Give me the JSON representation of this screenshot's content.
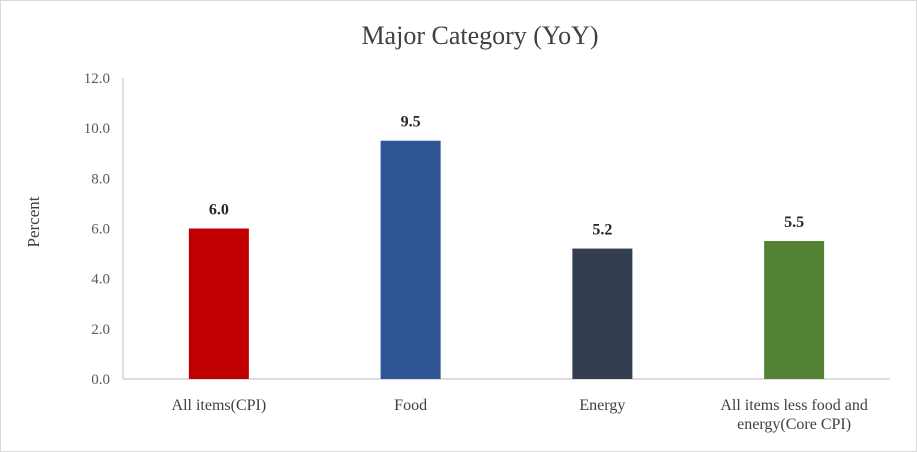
{
  "chart_data": {
    "type": "bar",
    "title": "Major Category (YoY)",
    "xlabel": "",
    "ylabel": "Percent",
    "ylim": [
      0,
      12
    ],
    "yticks": [
      "0.0",
      "2.0",
      "4.0",
      "6.0",
      "8.0",
      "10.0",
      "12.0"
    ],
    "categories": [
      [
        "All items(CPI)"
      ],
      [
        "Food"
      ],
      [
        "Energy"
      ],
      [
        "All items less food and",
        "energy(Core CPI)"
      ]
    ],
    "values": [
      6.0,
      9.5,
      5.2,
      5.5
    ],
    "data_labels": [
      "6.0",
      "9.5",
      "5.2",
      "5.5"
    ],
    "colors": [
      "#c00000",
      "#2f5597",
      "#333f50",
      "#548235"
    ],
    "grid": false,
    "legend": "none"
  }
}
